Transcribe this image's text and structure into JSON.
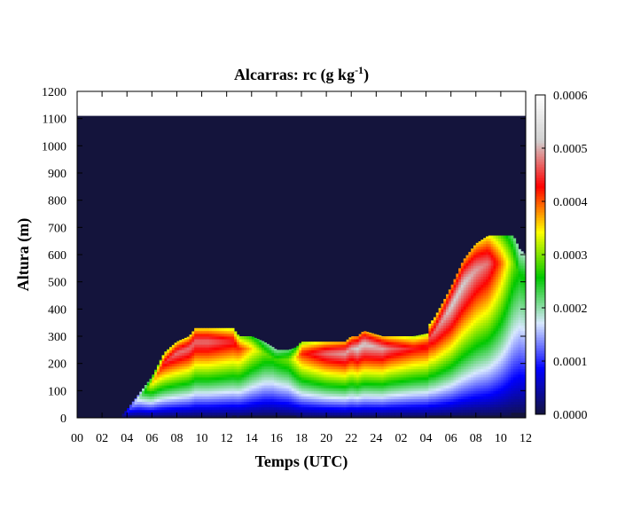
{
  "chart_data": {
    "type": "heatmap",
    "title": "Alcarras: rc (g kg",
    "title_superscript": "-1",
    "title_suffix": ")",
    "xlabel": "Temps (UTC)",
    "ylabel": "Altura (m)",
    "x_range_hours": [
      0,
      36
    ],
    "x_tick_labels": [
      "00",
      "02",
      "04",
      "06",
      "08",
      "10",
      "12",
      "14",
      "16",
      "18",
      "20",
      "22",
      "24",
      "02",
      "04",
      "06",
      "08",
      "10",
      "12"
    ],
    "ylim": [
      0,
      1200
    ],
    "y_ticks": [
      0,
      100,
      200,
      300,
      400,
      500,
      600,
      700,
      800,
      900,
      1000,
      1100,
      1200
    ],
    "data_top_m": 1110,
    "colorbar": {
      "min": 0.0,
      "max": 0.0006,
      "tick_labels": [
        "0.0000",
        "0.0001",
        "0.0002",
        "0.0003",
        "0.0004",
        "0.0005",
        "0.0006"
      ],
      "colors": [
        "#14143c",
        "#0000ff",
        "#d8e8ff",
        "#00c800",
        "#ffff00",
        "#ff0000",
        "#d0d0d0",
        "#ffffff"
      ]
    },
    "profile_hours": [
      0,
      3.4,
      4.0,
      5.0,
      6.0,
      7.0,
      8.0,
      9.0,
      9.5,
      10.5,
      12.5,
      13.0,
      14.0,
      15.0,
      15.7,
      16.0,
      17.0,
      17.6,
      18.0,
      20.0,
      21.5,
      22.0,
      22.5,
      23.0,
      24.5,
      25.0,
      26.0,
      27.0,
      28.1,
      28.2,
      28.7,
      29.3,
      30.0,
      31.0,
      32.0,
      33.0,
      34.0,
      35.0,
      35.5,
      36.0
    ],
    "cloud_top_m": [
      0,
      0,
      30,
      90,
      150,
      240,
      280,
      300,
      330,
      330,
      330,
      300,
      300,
      280,
      260,
      250,
      250,
      260,
      280,
      280,
      280,
      300,
      300,
      320,
      300,
      300,
      300,
      300,
      310,
      340,
      370,
      420,
      480,
      580,
      640,
      670,
      670,
      670,
      620,
      600
    ],
    "cloud_base_m": [
      0,
      0,
      0,
      0,
      0,
      0,
      0,
      0,
      0,
      0,
      0,
      0,
      0,
      0,
      0,
      0,
      0,
      0,
      0,
      0,
      0,
      0,
      0,
      0,
      0,
      0,
      0,
      0,
      0,
      0,
      0,
      0,
      0,
      0,
      0,
      0,
      0,
      0,
      0,
      0
    ],
    "max_rc": [
      0,
      0,
      0.0001,
      0.0002,
      0.00035,
      0.00045,
      0.00048,
      0.00048,
      0.00048,
      0.00048,
      0.00045,
      0.00042,
      0.00036,
      0.0003,
      0.00028,
      0.00028,
      0.0003,
      0.00036,
      0.00042,
      0.00048,
      0.0005,
      0.0005,
      0.00052,
      0.00052,
      0.0005,
      0.00048,
      0.00046,
      0.00044,
      0.00044,
      0.00046,
      0.00048,
      0.0005,
      0.00052,
      0.00052,
      0.0005,
      0.00048,
      0.0004,
      0.0003,
      0.00026,
      0.00026
    ],
    "grid_hours_step": 0.2,
    "grid_height_step_m": 10
  }
}
